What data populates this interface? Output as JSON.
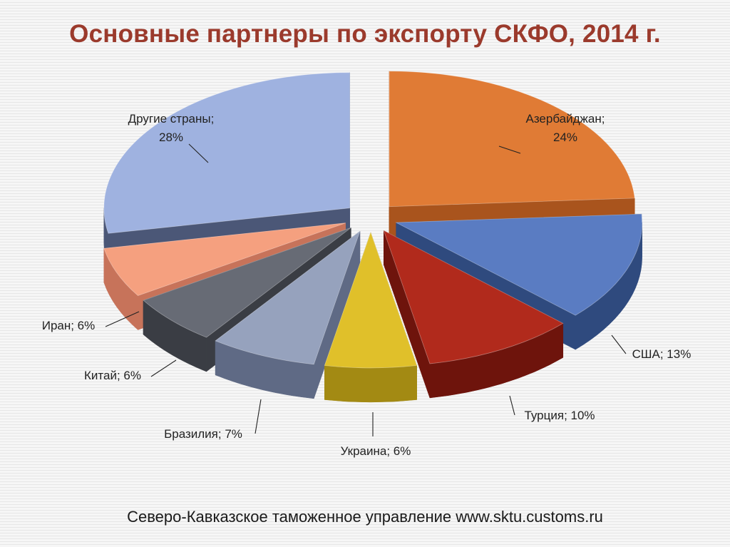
{
  "title": "Основные партнеры по экспорту СКФО, 2014 г.",
  "source": "Северо-Кавказское таможенное управление www.sktu.customs.ru",
  "chart_data": {
    "type": "pie",
    "title": "Основные партнеры по экспорту СКФО, 2014 г.",
    "unit": "%",
    "slices": [
      {
        "label": "Азербайджан",
        "value": 24,
        "display": "24%",
        "color": "#e07b35",
        "side": "#a9541d",
        "label_text": "Азербайджан; 24%"
      },
      {
        "label": "США",
        "value": 13,
        "display": "13%",
        "color": "#5a7cc2",
        "side": "#2f4a7e",
        "label_text": "США; 13%"
      },
      {
        "label": "Турция",
        "value": 10,
        "display": "10%",
        "color": "#b12a1c",
        "side": "#6e140c",
        "label_text": "Турция; 10%"
      },
      {
        "label": "Украина",
        "value": 6,
        "display": "6%",
        "color": "#e0c02a",
        "side": "#a38a13",
        "label_text": "Украина; 6%"
      },
      {
        "label": "Бразилия",
        "value": 7,
        "display": "7%",
        "color": "#96a2bd",
        "side": "#5f6a85",
        "label_text": "Бразилия; 7%"
      },
      {
        "label": "Китай",
        "value": 6,
        "display": "6%",
        "color": "#676b75",
        "side": "#3a3d44",
        "label_text": "Китай; 6%"
      },
      {
        "label": "Иран",
        "value": 6,
        "display": "6%",
        "color": "#f5a07f",
        "side": "#c7735a",
        "label_text": "Иран; 6%"
      },
      {
        "label": "Другие страны",
        "value": 28,
        "display": "28%",
        "color": "#9fb2e0",
        "side": "#4b5777",
        "label_text": "Другие страны; 28%"
      }
    ]
  }
}
